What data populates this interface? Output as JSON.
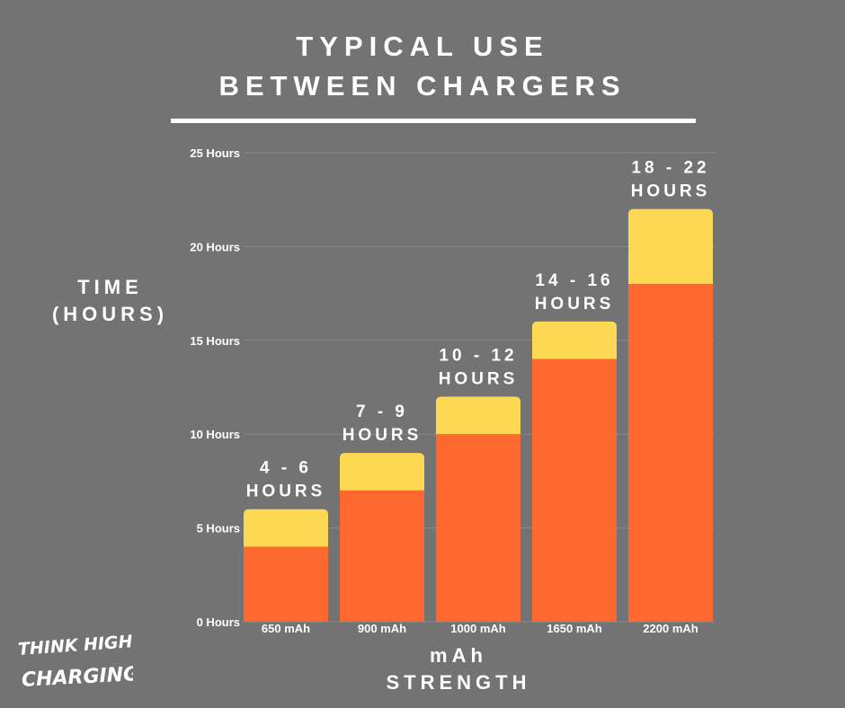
{
  "title_lines": [
    "TYPICAL USE",
    "BETWEEN CHARGERS"
  ],
  "y_title_lines": [
    "TIME",
    "(HOURS)"
  ],
  "x_title_lines": [
    "mAh",
    "STRENGTH"
  ],
  "logo": {
    "line1": "THINK HIGHER",
    "line2": "CHARGING"
  },
  "colors": {
    "background": "#737373",
    "base": "#ff6930",
    "range": "#fdd853",
    "grid": "#8a8a8a",
    "text": "#ffffff"
  },
  "chart_data": {
    "type": "bar",
    "stacked": true,
    "categories": [
      "650 mAh",
      "900 mAh",
      "1000 mAh",
      "1650 mAh",
      "2200 mAh"
    ],
    "series": [
      {
        "values": [
          4,
          7,
          10,
          14,
          18
        ]
      },
      {
        "values": [
          2,
          2,
          2,
          2,
          4
        ]
      }
    ],
    "range_min": [
      4,
      7,
      10,
      14,
      18
    ],
    "range_max": [
      6,
      9,
      12,
      16,
      22
    ],
    "bar_labels": [
      [
        "4 - 6",
        "HOURS"
      ],
      [
        "7 - 9",
        "HOURS"
      ],
      [
        "10 - 12",
        "HOURS"
      ],
      [
        "14 - 16",
        "HOURS"
      ],
      [
        "18 - 22",
        "HOURS"
      ]
    ],
    "y_ticks": [
      0,
      5,
      10,
      15,
      20,
      25
    ],
    "y_tick_labels": [
      "0 Hours",
      "5 Hours",
      "10 Hours",
      "15 Hours",
      "20 Hours",
      "25 Hours"
    ],
    "ylim": [
      0,
      25
    ],
    "grid": true,
    "legend": "none"
  }
}
